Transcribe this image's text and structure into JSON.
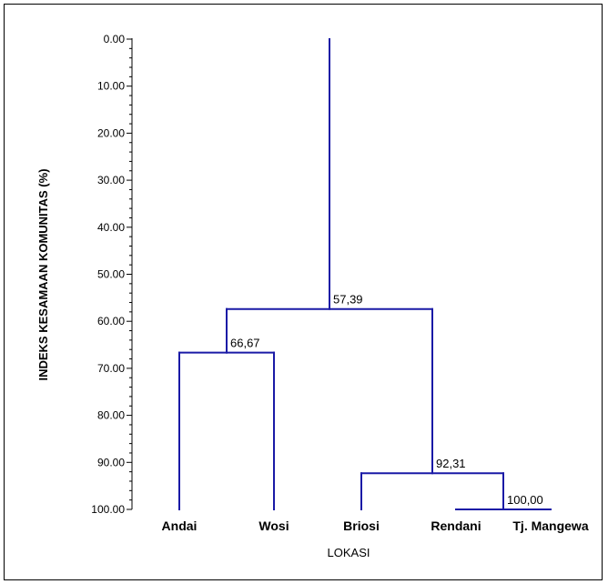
{
  "chart_data": {
    "type": "dendrogram",
    "title": "",
    "xlabel": "LOKASI",
    "ylabel": "INDEKS KESAMAAN KOMUNITAS (%)",
    "ylim": [
      0,
      100
    ],
    "y_ticks": [
      "0.00",
      "10.00",
      "20.00",
      "30.00",
      "40.00",
      "50.00",
      "60.00",
      "70.00",
      "80.00",
      "90.00",
      "100.00"
    ],
    "y_tick_values": [
      0,
      10,
      20,
      30,
      40,
      50,
      60,
      70,
      80,
      90,
      100
    ],
    "categories": [
      "Andai",
      "Wosi",
      "Briosi",
      "Rendani",
      "Tj. Mangewa"
    ],
    "merges": [
      {
        "left": "Rendani",
        "right": "Tj. Mangewa",
        "height": 100.0,
        "label": "100,00"
      },
      {
        "left": "Briosi",
        "right": "Rendani + Tj. Mangewa",
        "height": 92.31,
        "label": "92,31"
      },
      {
        "left": "Andai",
        "right": "Wosi",
        "height": 66.67,
        "label": "66,67"
      },
      {
        "left": "Andai + Wosi",
        "right": "Briosi + Rendani + Tj. Mangewa",
        "height": 57.39,
        "label": "57,39"
      }
    ],
    "root_height": 0,
    "line_color": "#1a1aa6"
  }
}
